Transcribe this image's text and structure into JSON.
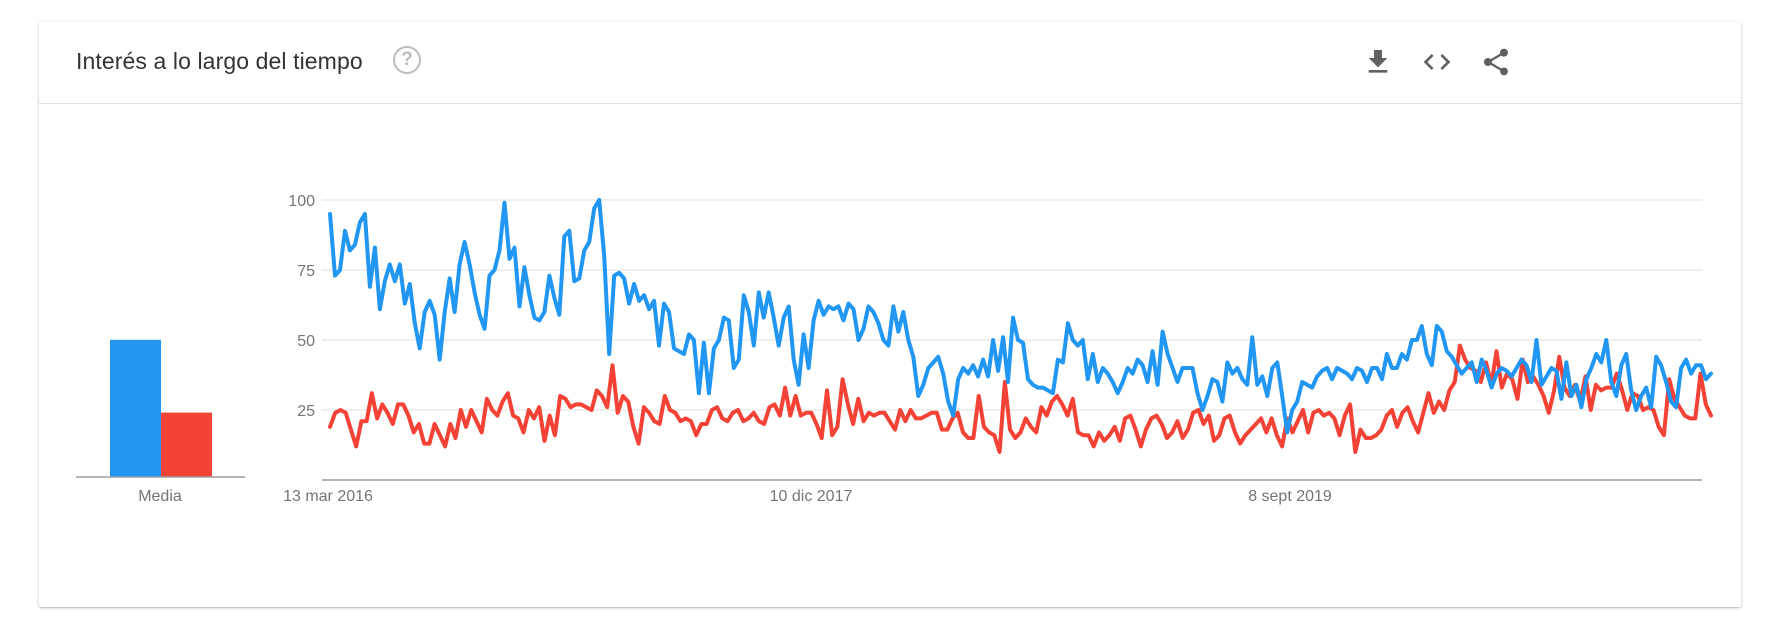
{
  "header": {
    "title": "Interés a lo largo del tiempo",
    "help_glyph": "?",
    "icons": [
      "download-icon",
      "embed-code-icon",
      "share-icon"
    ]
  },
  "colors": {
    "series_1": "#2196f3",
    "series_2": "#f44336",
    "grid": "#e0e0e0",
    "axis": "#9e9e9e",
    "tick_text": "#757575"
  },
  "chart_data": {
    "type": "line",
    "ylim": [
      0,
      100
    ],
    "yticks": [
      "25",
      "50",
      "75",
      "100"
    ],
    "xticks": [
      "13 mar 2016",
      "10 dic 2017",
      "8 sept 2019"
    ],
    "x_range": [
      "13 mar 2016",
      "21 feb 2021"
    ],
    "x_interval": "weekly",
    "grid": true,
    "averages": {
      "label": "Media",
      "values": [
        49,
        23
      ]
    },
    "series": [
      {
        "color": "#2196f3",
        "values": [
          95,
          73,
          75,
          89,
          82,
          84,
          92,
          95,
          69,
          83,
          61,
          71,
          77,
          71,
          77,
          63,
          70,
          56,
          47,
          60,
          64,
          59,
          43,
          60,
          72,
          60,
          77,
          85,
          77,
          67,
          59,
          54,
          73,
          75,
          82,
          99,
          79,
          83,
          62,
          76,
          66,
          58,
          57,
          60,
          73,
          65,
          59,
          87,
          89,
          71,
          72,
          82,
          85,
          97,
          100,
          80,
          45,
          73,
          74,
          72,
          63,
          70,
          64,
          66,
          61,
          64,
          48,
          63,
          60,
          47,
          46,
          45,
          52,
          50,
          31,
          49,
          31,
          47,
          50,
          58,
          57,
          40,
          43,
          66,
          60,
          48,
          67,
          58,
          67,
          58,
          48,
          58,
          62,
          43,
          34,
          52,
          40,
          57,
          64,
          59,
          62,
          61,
          62,
          57,
          63,
          61,
          50,
          54,
          62,
          60,
          56,
          50,
          48,
          62,
          53,
          60,
          50,
          44,
          30,
          34,
          40,
          42,
          44,
          38,
          28,
          23,
          36,
          40,
          38,
          41,
          37,
          43,
          37,
          50,
          39,
          51,
          35,
          58,
          50,
          49,
          36,
          34,
          33,
          33,
          32,
          31,
          43,
          42,
          56,
          50,
          48,
          50,
          36,
          45,
          35,
          40,
          38,
          35,
          31,
          35,
          40,
          38,
          43,
          41,
          35,
          46,
          34,
          53,
          45,
          40,
          35,
          40,
          40,
          40,
          31,
          25,
          30,
          36,
          35,
          28,
          42,
          38,
          40,
          36,
          34,
          51,
          34,
          37,
          30,
          40,
          42,
          30,
          17,
          25,
          28,
          35,
          34,
          33,
          37,
          39,
          40,
          36,
          40,
          39,
          38,
          36,
          40,
          39,
          35,
          40,
          40,
          36,
          45,
          40,
          40,
          45,
          43,
          50,
          50,
          55,
          45,
          41,
          55,
          53,
          46,
          44,
          41,
          38,
          40,
          42,
          35,
          43,
          39,
          33,
          38,
          40,
          39,
          37,
          40,
          43,
          41,
          35,
          50,
          34,
          37,
          40,
          39,
          29,
          42,
          30,
          34,
          26,
          36,
          40,
          45,
          42,
          50,
          35,
          30,
          41,
          45,
          32,
          25,
          30,
          33,
          26,
          44,
          41,
          35,
          28,
          26,
          40,
          43,
          38,
          41,
          41,
          36,
          38
        ]
      },
      {
        "color": "#f44336",
        "values": [
          19,
          24,
          25,
          24,
          18,
          12,
          21,
          21,
          31,
          22,
          27,
          24,
          20,
          27,
          27,
          23,
          17,
          20,
          13,
          13,
          20,
          16,
          12,
          20,
          15,
          25,
          19,
          25,
          21,
          17,
          29,
          25,
          23,
          28,
          31,
          23,
          22,
          17,
          25,
          22,
          26,
          14,
          23,
          16,
          30,
          29,
          26,
          27,
          27,
          26,
          25,
          32,
          30,
          26,
          41,
          24,
          30,
          28,
          19,
          13,
          26,
          24,
          21,
          20,
          30,
          25,
          24,
          21,
          22,
          21,
          16,
          20,
          20,
          25,
          26,
          22,
          21,
          24,
          25,
          21,
          22,
          24,
          21,
          20,
          26,
          27,
          23,
          33,
          23,
          30,
          23,
          24,
          24,
          20,
          15,
          32,
          16,
          19,
          36,
          27,
          20,
          29,
          21,
          24,
          23,
          24,
          24,
          21,
          18,
          25,
          21,
          25,
          22,
          22,
          23,
          24,
          24,
          18,
          18,
          22,
          24,
          17,
          15,
          15,
          30,
          19,
          17,
          16,
          10,
          35,
          18,
          15,
          17,
          22,
          19,
          17,
          26,
          23,
          28,
          30,
          27,
          23,
          29,
          17,
          16,
          16,
          12,
          17,
          14,
          16,
          19,
          14,
          22,
          23,
          18,
          12,
          18,
          22,
          23,
          20,
          15,
          17,
          21,
          15,
          18,
          24,
          25,
          20,
          23,
          14,
          16,
          22,
          23,
          17,
          13,
          16,
          18,
          20,
          22,
          17,
          22,
          16,
          12,
          22,
          17,
          21,
          25,
          17,
          24,
          25,
          23,
          24,
          22,
          16,
          23,
          27,
          10,
          18,
          15,
          15,
          16,
          18,
          23,
          25,
          19,
          24,
          26,
          21,
          17,
          24,
          31,
          24,
          28,
          25,
          32,
          35,
          48,
          43,
          40,
          39,
          35,
          42,
          34,
          46,
          33,
          38,
          36,
          29,
          43,
          35,
          37,
          34,
          30,
          24,
          32,
          44,
          33,
          30,
          34,
          28,
          37,
          25,
          34,
          32,
          33,
          33,
          38,
          32,
          25,
          31,
          30,
          25,
          26,
          25,
          19,
          16,
          36,
          29,
          26,
          23,
          22,
          22,
          38,
          27,
          23
        ]
      }
    ]
  }
}
